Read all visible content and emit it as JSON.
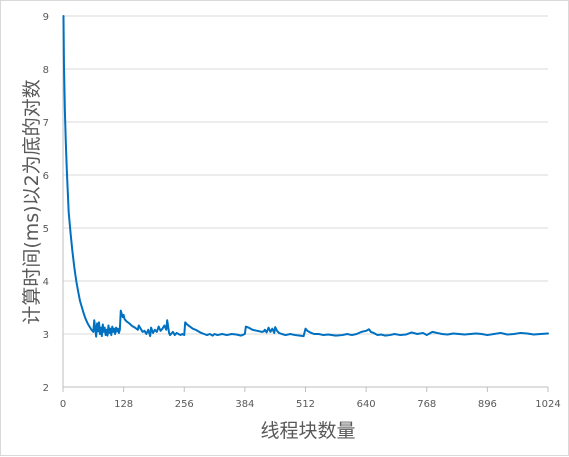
{
  "chart_data": {
    "type": "line",
    "title": "",
    "xlabel": "线程块数量",
    "ylabel": "计算时间(ms)以2为底的对数",
    "xlim": [
      0,
      1024
    ],
    "ylim": [
      2,
      9
    ],
    "x_ticks": [
      "0",
      "128",
      "256",
      "384",
      "512",
      "640",
      "768",
      "896",
      "1024"
    ],
    "y_ticks": [
      "2",
      "3",
      "4",
      "5",
      "6",
      "7",
      "8",
      "9"
    ],
    "grid": true,
    "legend": "none",
    "line_color": "#0070c0",
    "series": [
      {
        "x": [
          1,
          2,
          4,
          6,
          8,
          10,
          12,
          16,
          20,
          24,
          28,
          32,
          36,
          40,
          44,
          48,
          52,
          56,
          60,
          64,
          66,
          68,
          70,
          72,
          74,
          76,
          78,
          80,
          82,
          84,
          86,
          88,
          90,
          92,
          94,
          96,
          98,
          100,
          102,
          104,
          106,
          108,
          110,
          112,
          114,
          116,
          118,
          120,
          122,
          124,
          126,
          128,
          130,
          134,
          140,
          146,
          152,
          158,
          160,
          164,
          168,
          172,
          176,
          180,
          184,
          186,
          190,
          194,
          198,
          202,
          206,
          210,
          214,
          218,
          220,
          224,
          226,
          228,
          232,
          236,
          240,
          244,
          248,
          252,
          256,
          258,
          262,
          268,
          274,
          280,
          286,
          292,
          298,
          304,
          310,
          316,
          320,
          326,
          336,
          346,
          356,
          366,
          376,
          384,
          386,
          392,
          400,
          410,
          420,
          424,
          426,
          430,
          434,
          438,
          442,
          446,
          448,
          452,
          456,
          462,
          470,
          480,
          490,
          500,
          508,
          512,
          516,
          522,
          530,
          540,
          550,
          560,
          576,
          590,
          600,
          610,
          620,
          630,
          640,
          646,
          650,
          656,
          664,
          672,
          680,
          690,
          700,
          712,
          724,
          736,
          748,
          760,
          768,
          772,
          780,
          790,
          800,
          812,
          824,
          836,
          848,
          860,
          872,
          884,
          896,
          910,
          924,
          938,
          952,
          966,
          980,
          994,
          1008,
          1024
        ],
        "values": [
          9.0,
          8.1,
          7.2,
          6.6,
          6.1,
          5.7,
          5.3,
          4.9,
          4.55,
          4.25,
          4.0,
          3.8,
          3.62,
          3.5,
          3.38,
          3.28,
          3.2,
          3.14,
          3.08,
          3.04,
          3.26,
          3.1,
          2.95,
          3.2,
          3.05,
          3.22,
          3.0,
          3.12,
          2.96,
          3.18,
          3.04,
          3.12,
          2.98,
          3.08,
          2.97,
          3.16,
          3.02,
          3.1,
          2.98,
          3.14,
          3.04,
          3.1,
          3.0,
          3.12,
          3.05,
          3.1,
          3.02,
          3.08,
          3.44,
          3.38,
          3.32,
          3.36,
          3.28,
          3.24,
          3.2,
          3.15,
          3.12,
          3.08,
          3.16,
          3.1,
          3.04,
          3.06,
          3.0,
          3.08,
          2.96,
          3.12,
          3.02,
          3.08,
          3.04,
          3.14,
          3.06,
          3.1,
          3.16,
          3.08,
          3.26,
          3.02,
          2.98,
          3.0,
          3.04,
          2.98,
          3.02,
          3.0,
          2.98,
          3.0,
          2.98,
          3.22,
          3.18,
          3.14,
          3.1,
          3.08,
          3.05,
          3.02,
          3.0,
          2.98,
          3.0,
          2.97,
          3.0,
          2.98,
          3.0,
          2.98,
          3.0,
          2.99,
          2.97,
          3.0,
          3.14,
          3.12,
          3.08,
          3.06,
          3.04,
          3.05,
          3.08,
          3.03,
          3.12,
          3.04,
          3.1,
          3.02,
          3.13,
          3.06,
          3.02,
          3.0,
          2.98,
          3.0,
          2.98,
          2.97,
          2.96,
          3.1,
          3.06,
          3.03,
          3.0,
          3.0,
          2.98,
          2.99,
          2.97,
          2.98,
          3.0,
          2.98,
          3.0,
          3.04,
          3.06,
          3.09,
          3.04,
          3.02,
          2.98,
          2.99,
          2.97,
          2.98,
          3.0,
          2.98,
          2.99,
          3.03,
          3.0,
          3.02,
          2.98,
          3.0,
          3.04,
          3.02,
          3.0,
          2.99,
          3.01,
          3.0,
          2.99,
          3.0,
          3.01,
          3.0,
          2.98,
          3.0,
          3.02,
          2.99,
          3.0,
          3.02,
          3.01,
          2.99,
          3.0,
          3.01
        ]
      }
    ]
  }
}
